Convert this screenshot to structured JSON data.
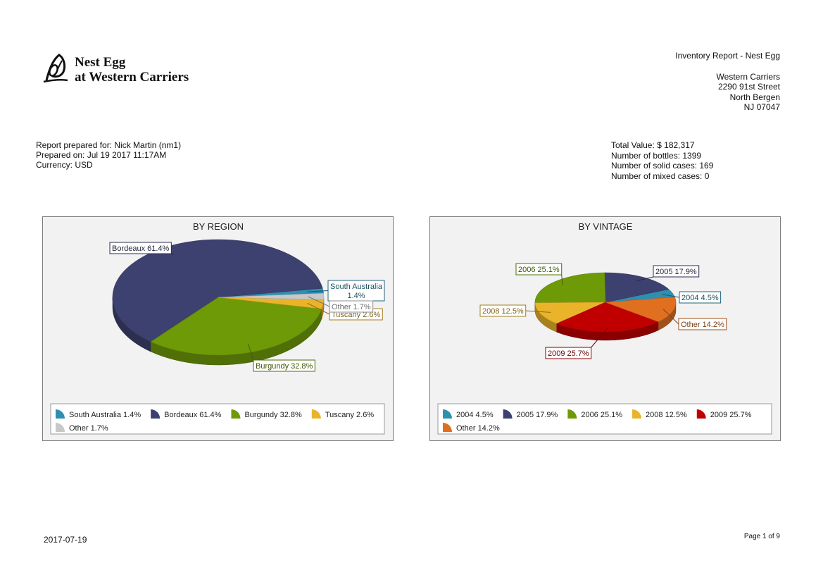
{
  "logo": {
    "line1": "Nest Egg",
    "line2": "at Western Carriers"
  },
  "header": {
    "report_title": "Inventory Report - Nest Egg",
    "address": [
      "Western Carriers",
      "2290 91st Street",
      "North Bergen",
      "NJ 07047"
    ]
  },
  "meta": {
    "prepared_for": "Report prepared for: Nick Martin (nm1)",
    "prepared_on": "Prepared on: Jul 19 2017 11:17AM",
    "currency": "Currency: USD",
    "total_value": "Total Value: $ 182,317",
    "bottles": "Number of bottles: 1399",
    "solid_cases": "Number of solid cases: 169",
    "mixed_cases": "Number of mixed cases: 0"
  },
  "chart_data": [
    {
      "type": "pie",
      "title": "BY REGION",
      "categories": [
        "South Australia",
        "Bordeaux",
        "Burgundy",
        "Tuscany",
        "Other"
      ],
      "values": [
        1.4,
        61.4,
        32.8,
        2.6,
        1.7
      ],
      "colors": [
        "#2f8fb0",
        "#3d416f",
        "#6f9a08",
        "#e9b32a",
        "#c8c8c8"
      ],
      "data_labels": [
        "South Australia 1.4%",
        "Bordeaux 61.4%",
        "Burgundy 32.8%",
        "Tuscany 2.6%",
        "Other 1.7%"
      ],
      "legend": [
        "South Australia 1.4%",
        "Bordeaux 61.4%",
        "Burgundy 32.8%",
        "Tuscany 2.6%",
        "Other 1.7%"
      ],
      "legend_position": "bottom"
    },
    {
      "type": "pie",
      "title": "BY VINTAGE",
      "categories": [
        "2004",
        "2005",
        "2006",
        "2008",
        "2009",
        "Other"
      ],
      "values": [
        4.5,
        17.9,
        25.1,
        12.5,
        25.7,
        14.2
      ],
      "colors": [
        "#2f8fb0",
        "#3d416f",
        "#6f9a08",
        "#e9b32a",
        "#c00000",
        "#e07020"
      ],
      "data_labels": [
        "2004 4.5%",
        "2005 17.9%",
        "2006 25.1%",
        "2008 12.5%",
        "2009 25.7%",
        "Other 14.2%"
      ],
      "legend": [
        "2004 4.5%",
        "2005 17.9%",
        "2006 25.1%",
        "2008 12.5%",
        "2009 25.7%",
        "Other 14.2%"
      ],
      "legend_position": "bottom"
    }
  ],
  "footer": {
    "date": "2017-07-19",
    "page": "Page 1 of 9"
  }
}
